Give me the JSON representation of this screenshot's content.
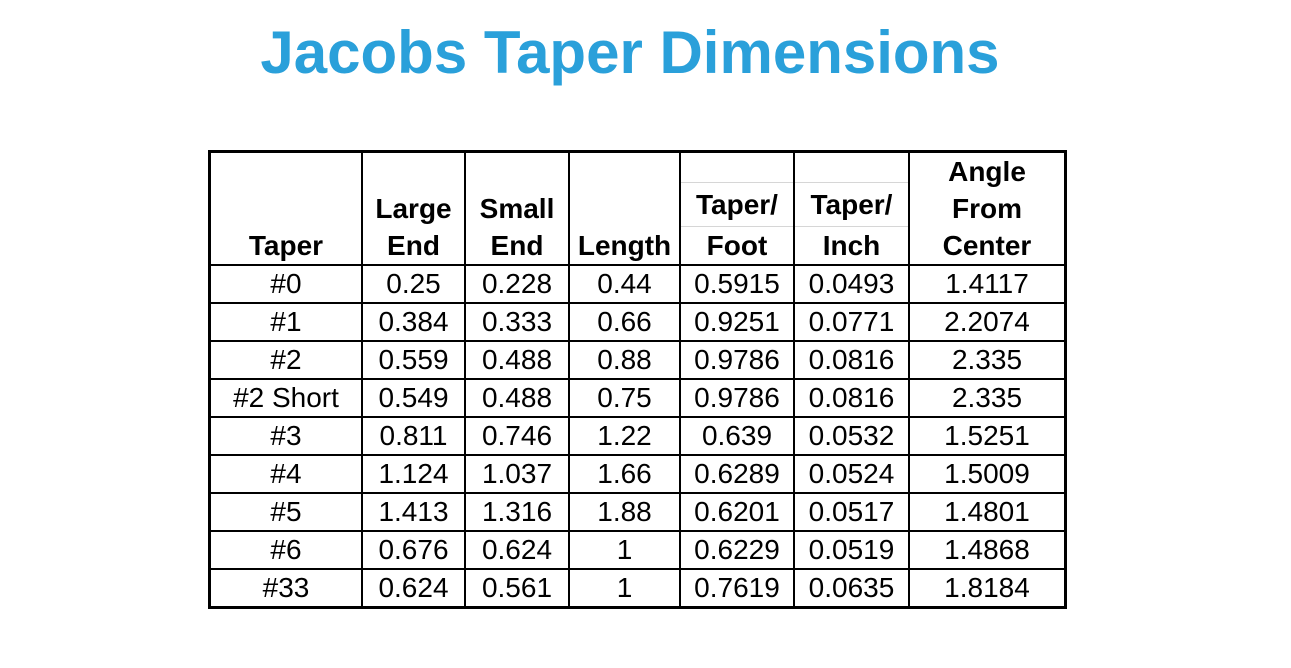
{
  "page_title": {
    "text": "Jacobs Taper Dimensions",
    "color": "#2AA0DA"
  },
  "table": {
    "border_color": "#000000",
    "faint_grid_color": "#d6d6d6",
    "columns": [
      {
        "id": "taper",
        "header_lines": [
          "Taper"
        ],
        "split_header": false
      },
      {
        "id": "large-end",
        "header_lines": [
          "Large",
          "End"
        ],
        "split_header": false
      },
      {
        "id": "small-end",
        "header_lines": [
          "Small",
          "End"
        ],
        "split_header": false
      },
      {
        "id": "length",
        "header_lines": [
          "Length"
        ],
        "split_header": false
      },
      {
        "id": "taper-per-foot",
        "header_lines": [
          "Taper/",
          "Foot"
        ],
        "split_header": true
      },
      {
        "id": "taper-per-inch",
        "header_lines": [
          "Taper/",
          "Inch"
        ],
        "split_header": true
      },
      {
        "id": "angle-from-center",
        "header_lines": [
          "Angle",
          "From",
          "Center"
        ],
        "split_header": false
      }
    ],
    "rows": [
      [
        "#0",
        "0.25",
        "0.228",
        "0.44",
        "0.5915",
        "0.0493",
        "1.4117"
      ],
      [
        "#1",
        "0.384",
        "0.333",
        "0.66",
        "0.9251",
        "0.0771",
        "2.2074"
      ],
      [
        "#2",
        "0.559",
        "0.488",
        "0.88",
        "0.9786",
        "0.0816",
        "2.335"
      ],
      [
        "#2 Short",
        "0.549",
        "0.488",
        "0.75",
        "0.9786",
        "0.0816",
        "2.335"
      ],
      [
        "#3",
        "0.811",
        "0.746",
        "1.22",
        "0.639",
        "0.0532",
        "1.5251"
      ],
      [
        "#4",
        "1.124",
        "1.037",
        "1.66",
        "0.6289",
        "0.0524",
        "1.5009"
      ],
      [
        "#5",
        "1.413",
        "1.316",
        "1.88",
        "0.6201",
        "0.0517",
        "1.4801"
      ],
      [
        "#6",
        "0.676",
        "0.624",
        "1",
        "0.6229",
        "0.0519",
        "1.4868"
      ],
      [
        "#33",
        "0.624",
        "0.561",
        "1",
        "0.7619",
        "0.0635",
        "1.8184"
      ]
    ]
  }
}
